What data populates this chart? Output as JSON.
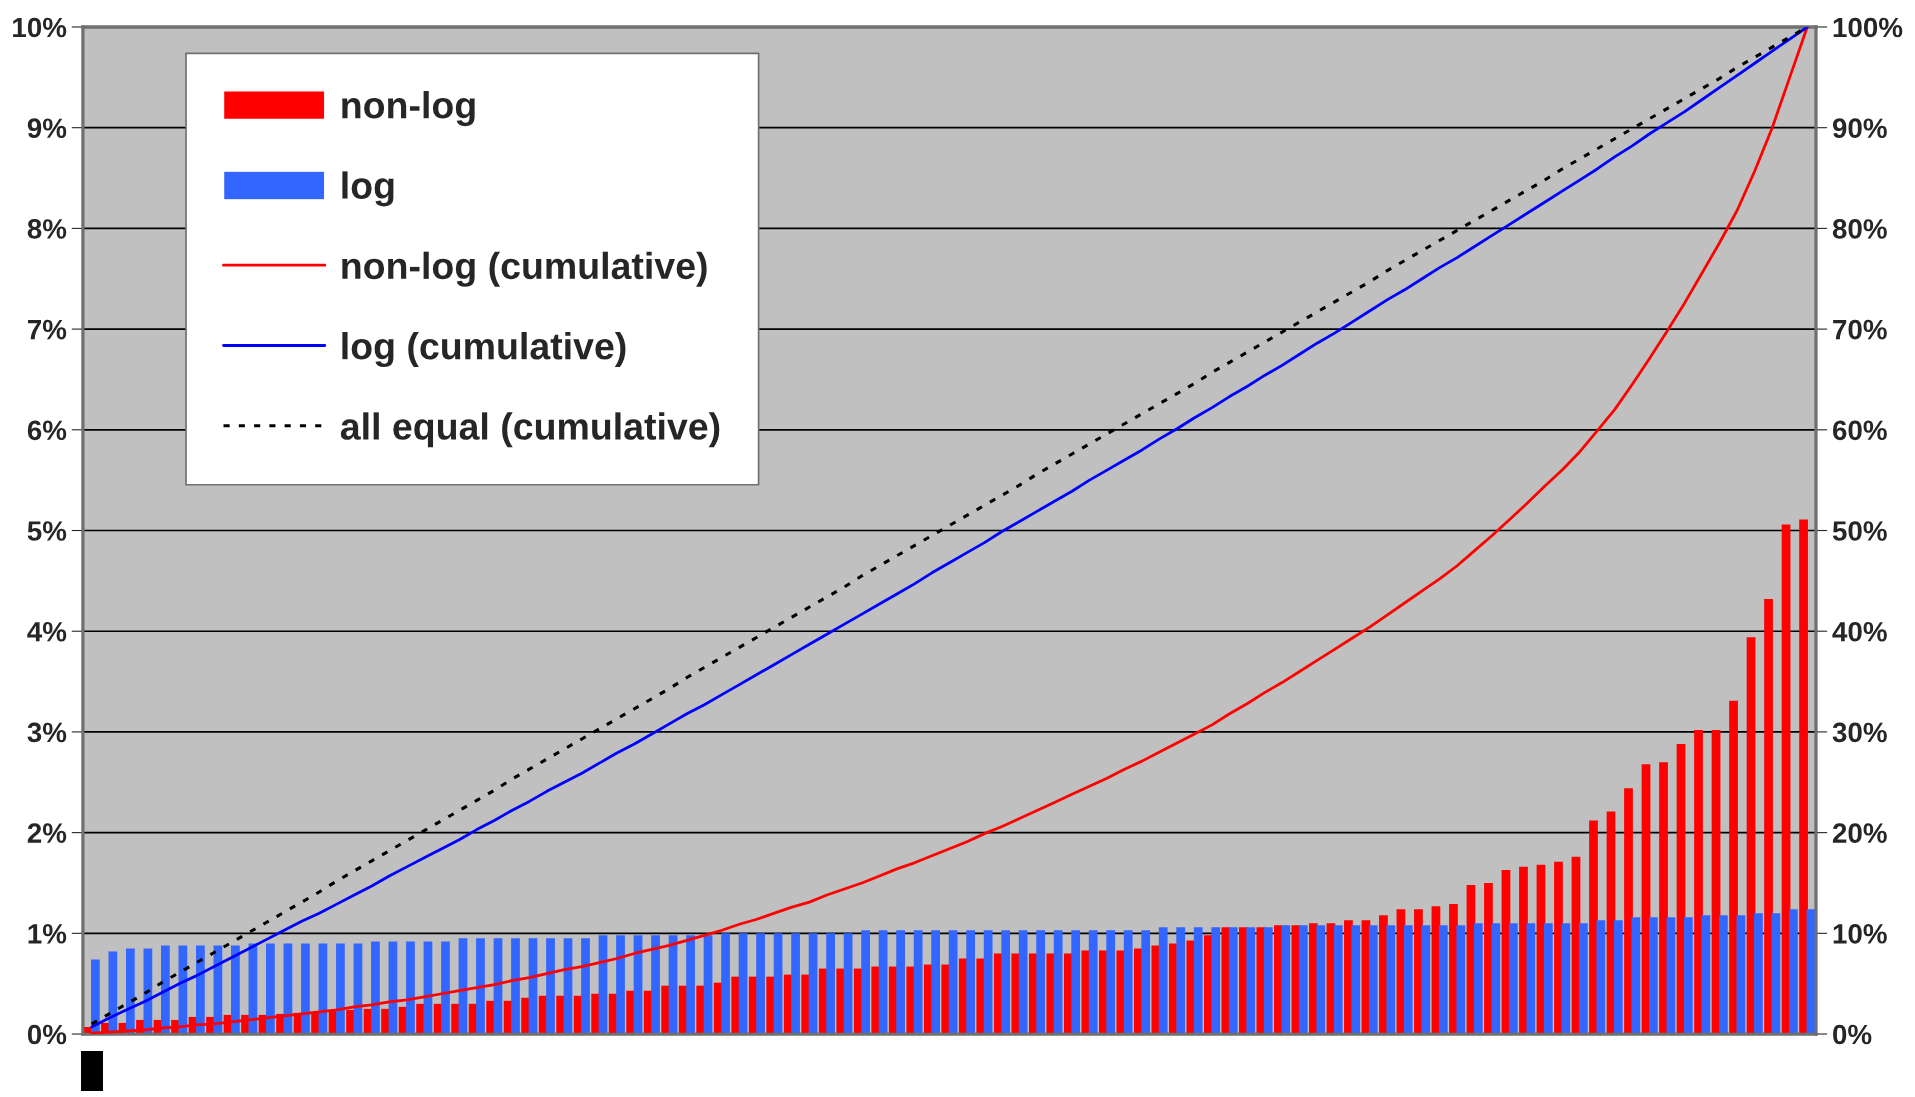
{
  "chart_data": {
    "type": "bar",
    "categories": [
      null,
      null,
      null,
      null,
      null,
      null,
      null,
      null,
      null,
      null,
      null,
      null,
      null,
      null,
      null,
      null,
      null,
      null,
      null,
      null,
      null,
      null,
      null,
      null,
      null,
      null,
      null,
      null,
      null,
      null,
      null,
      null,
      null,
      null,
      null,
      null,
      null,
      null,
      null,
      null,
      null,
      null,
      null,
      null,
      null,
      null,
      null,
      null,
      null,
      null,
      null,
      null,
      null,
      null,
      null,
      null,
      null,
      null,
      null,
      null,
      null,
      null,
      null,
      null,
      null,
      null,
      null,
      null,
      null,
      null,
      null,
      null,
      null,
      null,
      null,
      null,
      null,
      null,
      null,
      null,
      null,
      null,
      null,
      null,
      null,
      null,
      null,
      null,
      null,
      null,
      null,
      null,
      null,
      null,
      null,
      null,
      null,
      null,
      null
    ],
    "series": [
      {
        "name": "non-log",
        "color": "#ff0000",
        "values": [
          0.07,
          0.11,
          0.11,
          0.14,
          0.14,
          0.14,
          0.17,
          0.17,
          0.19,
          0.19,
          0.19,
          0.2,
          0.21,
          0.21,
          0.24,
          0.24,
          0.25,
          0.25,
          0.27,
          0.3,
          0.3,
          0.3,
          0.3,
          0.33,
          0.33,
          0.36,
          0.38,
          0.38,
          0.38,
          0.4,
          0.4,
          0.43,
          0.43,
          0.48,
          0.48,
          0.48,
          0.51,
          0.57,
          0.57,
          0.57,
          0.59,
          0.59,
          0.65,
          0.65,
          0.65,
          0.67,
          0.67,
          0.67,
          0.69,
          0.69,
          0.75,
          0.75,
          0.8,
          0.8,
          0.8,
          0.8,
          0.8,
          0.83,
          0.83,
          0.83,
          0.85,
          0.88,
          0.9,
          0.93,
          0.98,
          1.06,
          1.06,
          1.06,
          1.08,
          1.08,
          1.1,
          1.1,
          1.13,
          1.13,
          1.18,
          1.24,
          1.24,
          1.27,
          1.29,
          1.48,
          1.5,
          1.63,
          1.66,
          1.68,
          1.71,
          1.76,
          2.12,
          2.21,
          2.44,
          2.68,
          2.7,
          2.88,
          3.02,
          3.02,
          3.31,
          3.94,
          4.32,
          5.06,
          5.11
        ]
      },
      {
        "name": "log",
        "color": "#3366ff",
        "values": [
          0.74,
          0.82,
          0.85,
          0.85,
          0.88,
          0.88,
          0.88,
          0.88,
          0.88,
          0.9,
          0.9,
          0.9,
          0.9,
          0.9,
          0.9,
          0.9,
          0.92,
          0.92,
          0.92,
          0.92,
          0.92,
          0.95,
          0.95,
          0.95,
          0.95,
          0.95,
          0.95,
          0.95,
          0.95,
          0.98,
          0.98,
          0.98,
          0.98,
          0.98,
          0.98,
          0.98,
          1.0,
          1.0,
          1.0,
          1.0,
          1.0,
          1.0,
          1.0,
          1.0,
          1.03,
          1.03,
          1.03,
          1.03,
          1.03,
          1.03,
          1.03,
          1.03,
          1.03,
          1.03,
          1.03,
          1.03,
          1.03,
          1.03,
          1.03,
          1.03,
          1.03,
          1.06,
          1.06,
          1.06,
          1.06,
          1.06,
          1.06,
          1.06,
          1.08,
          1.08,
          1.08,
          1.08,
          1.08,
          1.08,
          1.08,
          1.08,
          1.08,
          1.08,
          1.08,
          1.1,
          1.1,
          1.1,
          1.1,
          1.1,
          1.1,
          1.1,
          1.13,
          1.13,
          1.16,
          1.16,
          1.16,
          1.16,
          1.18,
          1.18,
          1.18,
          1.2,
          1.2,
          1.24,
          1.24
        ]
      },
      {
        "name": "non-log (cumulative)",
        "type": "line",
        "axis": "y2",
        "color": "#ff0000",
        "values": [
          0.1,
          0.2,
          0.3,
          0.4,
          0.6,
          0.7,
          0.9,
          1.0,
          1.2,
          1.4,
          1.6,
          1.8,
          2.0,
          2.2,
          2.4,
          2.7,
          2.9,
          3.2,
          3.4,
          3.7,
          4.0,
          4.3,
          4.6,
          4.9,
          5.3,
          5.6,
          6.0,
          6.4,
          6.7,
          7.1,
          7.5,
          8.0,
          8.4,
          8.8,
          9.3,
          9.8,
          10.3,
          10.9,
          11.4,
          12.0,
          12.6,
          13.1,
          13.8,
          14.4,
          15.0,
          15.7,
          16.4,
          17.0,
          17.7,
          18.4,
          19.1,
          19.9,
          20.6,
          21.4,
          22.2,
          23.0,
          23.8,
          24.6,
          25.4,
          26.3,
          27.1,
          28.0,
          28.9,
          29.8,
          30.7,
          31.8,
          32.8,
          33.9,
          34.9,
          36.0,
          37.1,
          38.2,
          39.3,
          40.4,
          41.6,
          42.8,
          44.0,
          45.2,
          46.5,
          48.0,
          49.5,
          51.1,
          52.7,
          54.4,
          56.0,
          57.8,
          59.9,
          62.0,
          64.5,
          67.1,
          69.8,
          72.6,
          75.6,
          78.6,
          81.8,
          85.7,
          90.0,
          95.0,
          100.0
        ]
      },
      {
        "name": "log (cumulative)",
        "type": "line",
        "axis": "y2",
        "color": "#0000ff",
        "values": [
          0.7,
          1.6,
          2.4,
          3.2,
          4.1,
          5.0,
          5.8,
          6.7,
          7.6,
          8.5,
          9.4,
          10.3,
          11.2,
          12.0,
          12.9,
          13.8,
          14.7,
          15.7,
          16.6,
          17.5,
          18.4,
          19.3,
          20.3,
          21.2,
          22.2,
          23.1,
          24.1,
          25.0,
          25.9,
          26.9,
          27.9,
          28.8,
          29.8,
          30.8,
          31.8,
          32.7,
          33.7,
          34.7,
          35.7,
          36.7,
          37.7,
          38.7,
          39.7,
          40.7,
          41.7,
          42.7,
          43.7,
          44.7,
          45.8,
          46.8,
          47.8,
          48.8,
          49.9,
          50.9,
          51.9,
          52.9,
          53.9,
          55.0,
          56.0,
          57.0,
          58.0,
          59.1,
          60.1,
          61.2,
          62.2,
          63.3,
          64.3,
          65.4,
          66.4,
          67.5,
          68.6,
          69.6,
          70.7,
          71.8,
          72.9,
          73.9,
          75.0,
          76.1,
          77.1,
          78.2,
          79.3,
          80.4,
          81.5,
          82.6,
          83.7,
          84.8,
          85.9,
          87.1,
          88.2,
          89.4,
          90.5,
          91.6,
          92.8,
          94.0,
          95.2,
          96.4,
          97.6,
          98.8,
          100.0
        ]
      },
      {
        "name": "all equal (cumulative)",
        "type": "line",
        "axis": "y2",
        "color": "#000000",
        "line_style": "dotted",
        "values": [
          1.0,
          2.0,
          3.0,
          4.0,
          5.1,
          6.1,
          7.1,
          8.1,
          9.1,
          10.1,
          11.1,
          12.1,
          13.1,
          14.1,
          15.2,
          16.2,
          17.2,
          18.2,
          19.2,
          20.2,
          21.2,
          22.2,
          23.2,
          24.2,
          25.3,
          26.3,
          27.3,
          28.3,
          29.3,
          30.3,
          31.3,
          32.3,
          33.3,
          34.3,
          35.4,
          36.4,
          37.4,
          38.4,
          39.4,
          40.4,
          41.4,
          42.4,
          43.4,
          44.4,
          45.5,
          46.5,
          47.5,
          48.5,
          49.5,
          50.5,
          51.5,
          52.5,
          53.5,
          54.5,
          55.6,
          56.6,
          57.6,
          58.6,
          59.6,
          60.6,
          61.6,
          62.6,
          63.6,
          64.6,
          65.7,
          66.7,
          67.7,
          68.7,
          69.7,
          70.7,
          71.7,
          72.7,
          73.7,
          74.7,
          75.8,
          76.8,
          77.8,
          78.8,
          79.8,
          80.8,
          81.8,
          82.8,
          83.8,
          84.8,
          85.9,
          86.9,
          87.9,
          88.9,
          89.9,
          90.9,
          91.9,
          92.9,
          93.9,
          94.9,
          96.0,
          97.0,
          98.0,
          99.0,
          100.0
        ]
      }
    ],
    "ylim": [
      0,
      10
    ],
    "yticks": [
      {
        "value": 0,
        "label": "0%"
      },
      {
        "value": 1,
        "label": "1%"
      },
      {
        "value": 2,
        "label": "2%"
      },
      {
        "value": 3,
        "label": "3%"
      },
      {
        "value": 4,
        "label": "4%"
      },
      {
        "value": 5,
        "label": "5%"
      },
      {
        "value": 6,
        "label": "6%"
      },
      {
        "value": 7,
        "label": "7%"
      },
      {
        "value": 8,
        "label": "8%"
      },
      {
        "value": 9,
        "label": "9%"
      },
      {
        "value": 10,
        "label": "10%"
      }
    ],
    "y2lim": [
      0,
      100
    ],
    "y2ticks": [
      {
        "value": 0,
        "label": "0%"
      },
      {
        "value": 10,
        "label": "10%"
      },
      {
        "value": 20,
        "label": "20%"
      },
      {
        "value": 30,
        "label": "30%"
      },
      {
        "value": 40,
        "label": "40%"
      },
      {
        "value": 50,
        "label": "50%"
      },
      {
        "value": 60,
        "label": "60%"
      },
      {
        "value": 70,
        "label": "70%"
      },
      {
        "value": 80,
        "label": "80%"
      },
      {
        "value": 90,
        "label": "90%"
      },
      {
        "value": 100,
        "label": "100%"
      }
    ],
    "grid": "y",
    "legend": "top left"
  }
}
